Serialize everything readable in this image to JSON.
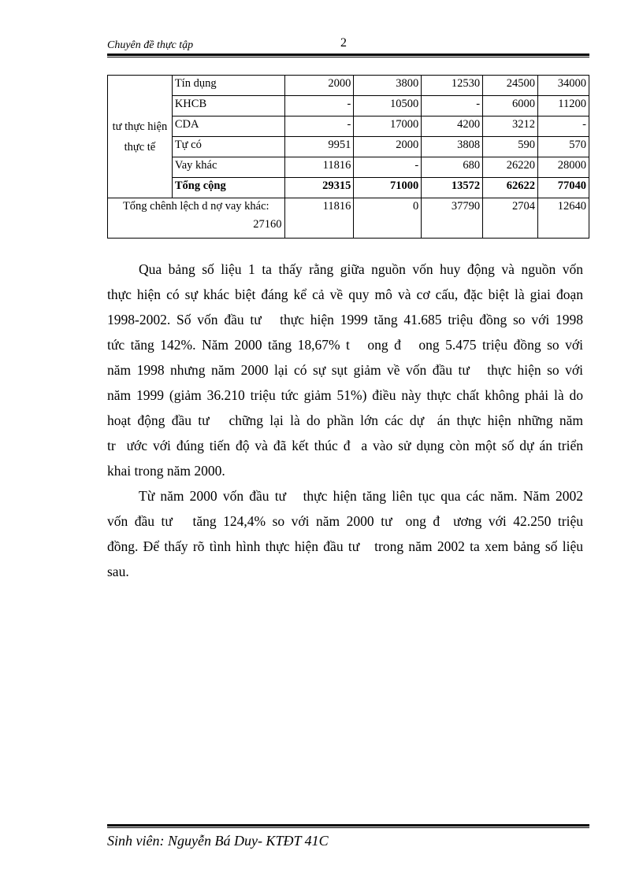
{
  "header": {
    "title": "Chuyên đề thực tập",
    "page_number": "2"
  },
  "table": {
    "group_label": "tư thực hiện thực tế",
    "rows": [
      {
        "label": "Tín dụng",
        "values": [
          "2000",
          "3800",
          "12530",
          "24500",
          "34000"
        ]
      },
      {
        "label": "KHCB",
        "values": [
          "-",
          "10500",
          "-",
          "6000",
          "11200"
        ]
      },
      {
        "label": "CDA",
        "values": [
          "-",
          "17000",
          "4200",
          "3212",
          "-"
        ]
      },
      {
        "label": "Tự có",
        "values": [
          "9951",
          "2000",
          "3808",
          "590",
          "570"
        ]
      },
      {
        "label": "Vay khác",
        "values": [
          "11816",
          "-",
          "680",
          "26220",
          "28000"
        ]
      },
      {
        "label": "Tổng cộng",
        "values": [
          "29315",
          "71000",
          "13572",
          "62622",
          "77040"
        ]
      }
    ],
    "diff_row": {
      "label": "Tổng chênh lệch d   nợ vay khác:",
      "label_value": "27160",
      "values": [
        "11816",
        "0",
        "37790",
        "2704",
        "12640"
      ]
    }
  },
  "paragraphs": [
    [
      "Qua bảng số liệu 1 ta thấy rằng giữa nguồn vốn huy động và nguồn vốn",
      "thực hiện có sự khác biệt đáng kể cả về quy mô và cơ cấu, đặc biệt là giai đoạn",
      "1998-2002. Số vốn đầu tư   thực hiện 1999 tăng 41.685 triệu đồng so với 1998",
      "tức tăng 142%. Năm 2000 tăng 18,67% t   ong đ   ong 5.475 triệu đồng so với",
      "năm 1998 nhưng năm 2000 lại có sự sụt giảm về vốn đầu tư   thực hiện so với",
      "năm 1999 (giảm 36.210 triệu tức giảm 51%) điều này thực chất không phải là do",
      "hoạt động đầu tư   chững lại là do phần lớn các dự  án thực hiện những năm",
      "tr  ước với đúng tiến độ và đã kết thúc đ  a vào sử dụng còn một số dự án triển",
      "khai trong năm 2000."
    ],
    [
      "Từ năm 2000 vốn đầu tư   thực hiện tăng liên tục qua các năm. Năm 2002",
      "vốn đầu tư   tăng 124,4% so với năm 2000 tư  ong đ  ương với 42.250 triệu",
      "đồng. Để thấy rõ tình hình thực hiện đầu tư   trong năm 2002 ta xem bảng số liệu",
      "sau."
    ]
  ],
  "footer": {
    "text": "Sinh viên: Nguyễn Bá Duy- KTĐT 41C"
  }
}
